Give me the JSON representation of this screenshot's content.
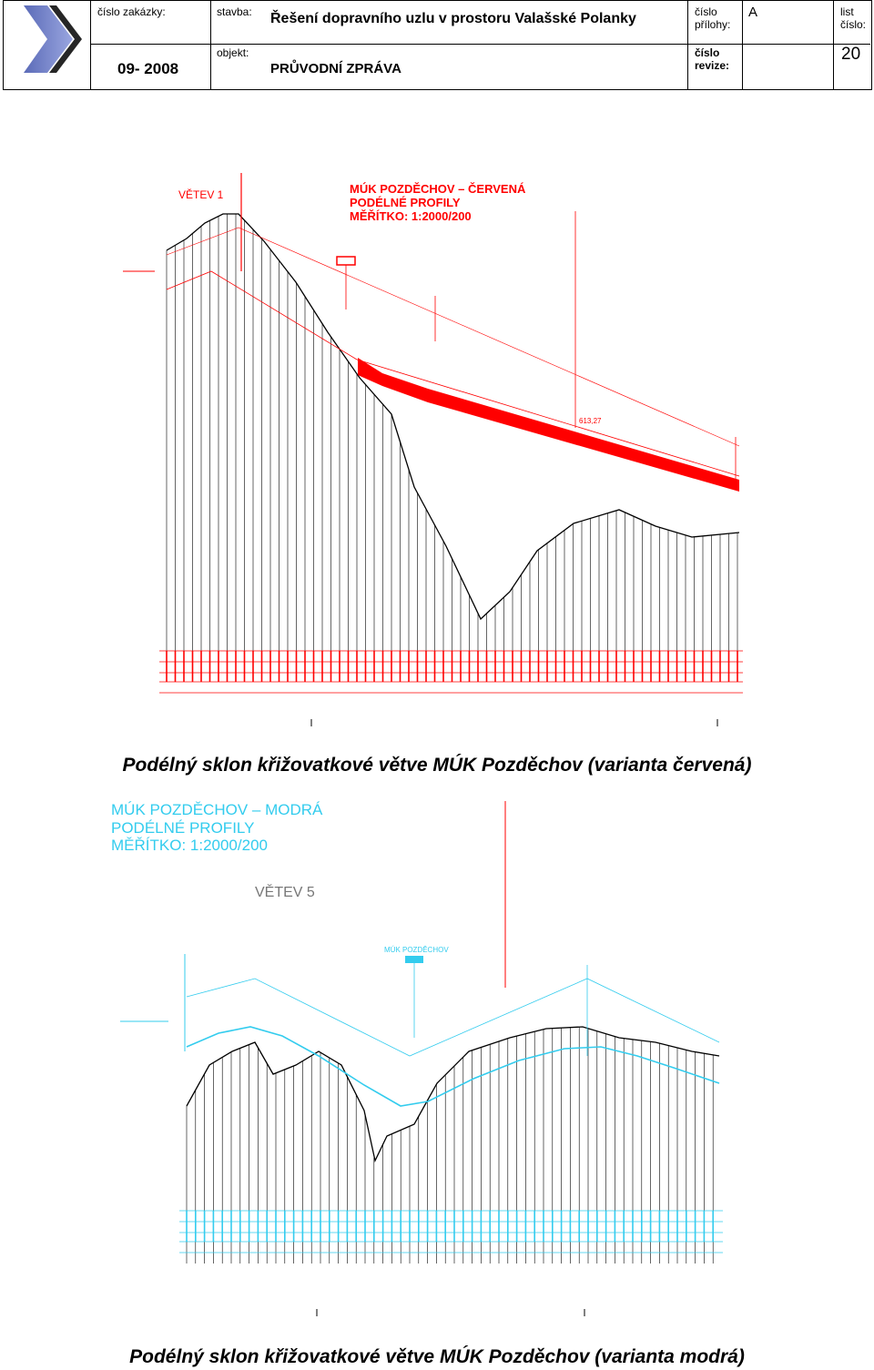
{
  "header": {
    "cislo_zakazky_label": "číslo zakázky:",
    "cislo_zakazky_value": "09- 2008",
    "stavba_label": "stavba:",
    "stavba_value": "Řešení dopravního uzlu v prostoru Valašské Polanky",
    "objekt_label": "objekt:",
    "objekt_value": "PRŮVODNÍ ZPRÁVA",
    "cislo_prilohy_label_1": "číslo",
    "cislo_prilohy_label_2": "přílohy:",
    "cislo_prilohy_value": "A",
    "cislo_revize_label_1": "číslo",
    "cislo_revize_label_2": "revize:",
    "list_cislo_label_1": "list",
    "list_cislo_label_2": "číslo:",
    "list_cislo_value": "20"
  },
  "figure1": {
    "title_1": "MÚK POZDĚCHOV – ČERVENÁ",
    "title_2": "PODÉLNÉ PROFILY",
    "title_3": "MĚŘÍTKO: 1:2000/200",
    "branch": "VĚTEV 1",
    "elev_label": "613,27",
    "color": "#ff0000"
  },
  "caption1": "Podélný sklon křižovatkové větve MÚK Pozděchov (varianta červená)",
  "figure2": {
    "title_1": "MÚK POZDĚCHOV – MODRÁ",
    "title_2": "PODÉLNÉ PROFILY",
    "title_3": "MĚŘÍTKO: 1:2000/200",
    "branch": "VĚTEV 5",
    "marker": "MÚK POZDĚCHOV",
    "color": "#33ccee"
  },
  "caption2": "Podélný sklon křižovatkové větve MÚK Pozděchov (varianta modrá)"
}
